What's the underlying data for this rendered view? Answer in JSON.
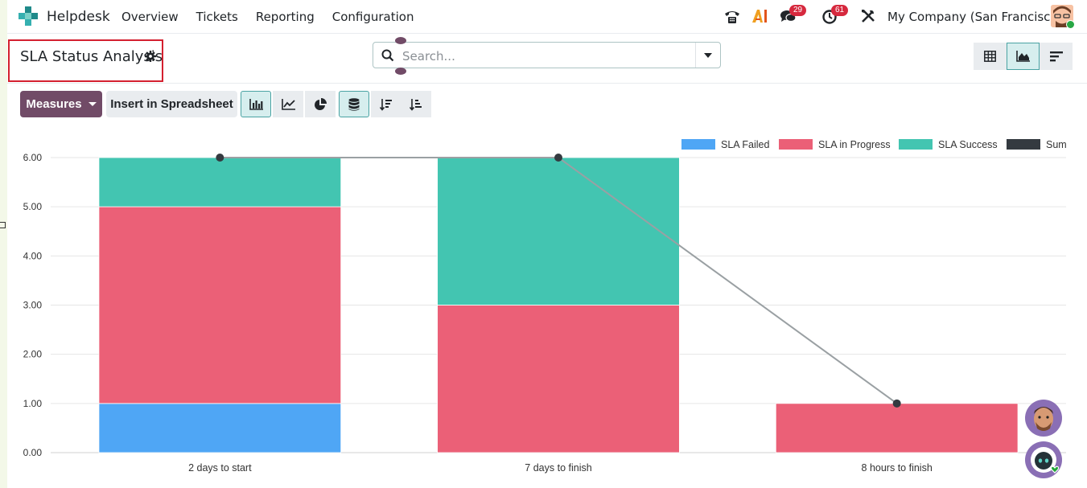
{
  "navbar": {
    "app_name": "Helpdesk",
    "menu": [
      "Overview",
      "Tickets",
      "Reporting",
      "Configuration"
    ],
    "messages_count": "29",
    "activities_count": "61",
    "company": "My Company (San Francisco)"
  },
  "control_panel": {
    "title": "SLA Status Analysis",
    "search_placeholder": "Search..."
  },
  "toolbar": {
    "measures_label": "Measures",
    "insert_label": "Insert in Spreadsheet"
  },
  "colors": {
    "brand": "#714b67",
    "accent": "#4aa3a3",
    "sla_failed": "#4fa6f5",
    "sla_in_progress": "#eb6077",
    "sla_success": "#43c5b1",
    "sum": "#343a40"
  },
  "chart_data": {
    "type": "bar",
    "stacked": true,
    "categories": [
      "2 days to start",
      "7 days to finish",
      "8 hours to finish"
    ],
    "series": [
      {
        "name": "SLA Failed",
        "values": [
          1,
          0,
          0
        ],
        "color": "#4fa6f5"
      },
      {
        "name": "SLA in Progress",
        "values": [
          4,
          3,
          1
        ],
        "color": "#eb6077"
      },
      {
        "name": "SLA Success",
        "values": [
          1,
          3,
          0
        ],
        "color": "#43c5b1"
      },
      {
        "name": "Sum",
        "type": "line",
        "values": [
          6,
          6,
          1
        ],
        "color": "#343a40"
      }
    ],
    "yticks": [
      "0.00",
      "1.00",
      "2.00",
      "3.00",
      "4.00",
      "5.00",
      "6.00"
    ],
    "ylim": [
      0,
      6
    ],
    "grid": true,
    "legend": "top-right"
  }
}
